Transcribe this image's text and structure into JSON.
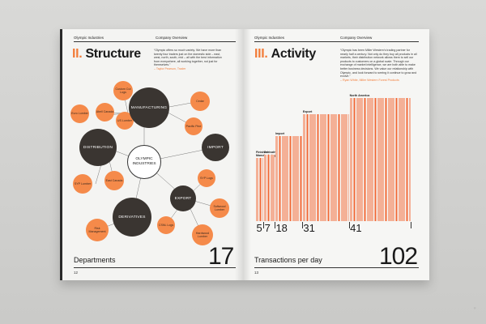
{
  "left_page": {
    "header_left": "Olympic Industries",
    "header_right": "Company Overview",
    "section_number": "II.",
    "section_title": "Structure",
    "quote": "“Olympic offers so much variety. We have more than twenty four traders just on the domestic side – east, west, north, south, mid – all with the best information from everywhere, all working together, not just for themselves.”",
    "quote_attribution": "– Taylor Pearson, Trader",
    "footer_label": "Departments",
    "footer_number": "17",
    "page_number": "12",
    "diagram": {
      "center": "OLYMPIC INDUSTRIES",
      "departments": [
        "MANUFACTURING",
        "DISTRIBUTION",
        "IMPORT",
        "EXPORT",
        "DERIVATIVES"
      ],
      "sub_units": [
        "Custom Cut Logs",
        "Euro Lumber",
        "Abell Canada",
        "US Lumber",
        "Cedar",
        "Pacific Pine",
        "SYP Lumber",
        "East Canada",
        "SYP Logs",
        "Softwood Lumber",
        "CSNL Logs",
        "Hardwood Lumber",
        "Risk Management"
      ]
    }
  },
  "right_page": {
    "header_left": "Olympic Industries",
    "header_right": "Company Overview",
    "section_number": "III.",
    "section_title": "Activity",
    "quote": "“Olympic has been Miller Western’s trading partner for nearly half a century. Not only do they buy all products in all markets, their distribution network allows them to sell our products to customers on a global scale. Through our exchange of market intelligence, we are both able to make better business decisions. We value our relationship with Olympic, and look forward to seeing it continue to grow and evolve.”",
    "quote_attribution": "– Ryan White, Miller Western Forest Products",
    "footer_label": "Transactions per day",
    "footer_number": "102",
    "page_number": "13"
  },
  "chart_data": {
    "type": "bar",
    "categories": [
      "Finished Manufacturing",
      "Derivatives",
      "Import",
      "Export",
      "North America"
    ],
    "values": [
      5,
      7,
      18,
      31,
      41
    ]
  },
  "colors": {
    "accent": "#f27d3a",
    "dark_node": "#3a3531",
    "orange_node": "#f58a4a"
  }
}
